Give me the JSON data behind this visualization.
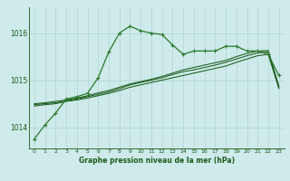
{
  "bg_color": "#ceeaea",
  "grid_color": "#add4d4",
  "line_color_dark": "#1a5c1a",
  "line_color_med": "#2a7a2a",
  "xlabel": "Graphe pression niveau de la mer (hPa)",
  "xlim": [
    -0.5,
    23.5
  ],
  "ylim": [
    1013.55,
    1016.55
  ],
  "yticks": [
    1014,
    1015,
    1016
  ],
  "xticks": [
    0,
    1,
    2,
    3,
    4,
    5,
    6,
    7,
    8,
    9,
    10,
    11,
    12,
    13,
    14,
    15,
    16,
    17,
    18,
    19,
    20,
    21,
    22,
    23
  ],
  "s1_x": [
    0,
    1,
    2,
    3,
    4,
    5,
    6,
    7,
    8,
    9,
    10,
    11,
    12,
    13,
    14,
    15,
    16,
    17,
    18,
    19,
    20,
    21,
    22,
    23
  ],
  "s1_y": [
    1013.75,
    1014.05,
    1014.3,
    1014.6,
    1014.65,
    1014.72,
    1015.05,
    1015.6,
    1016.0,
    1016.15,
    1016.05,
    1016.0,
    1015.97,
    1015.75,
    1015.55,
    1015.62,
    1015.62,
    1015.62,
    1015.72,
    1015.72,
    1015.62,
    1015.62,
    1015.55,
    1015.1
  ],
  "s2_x": [
    0,
    1,
    2,
    3,
    4,
    5,
    6,
    7,
    8,
    9,
    10,
    11,
    12,
    13,
    14,
    15,
    16,
    17,
    18,
    19,
    20,
    21,
    22,
    23
  ],
  "s2_y": [
    1014.45,
    1014.48,
    1014.5,
    1014.55,
    1014.58,
    1014.62,
    1014.67,
    1014.72,
    1014.78,
    1014.85,
    1014.9,
    1014.95,
    1015.0,
    1015.05,
    1015.1,
    1015.15,
    1015.2,
    1015.25,
    1015.3,
    1015.38,
    1015.45,
    1015.52,
    1015.55,
    1014.82
  ],
  "s3_x": [
    0,
    1,
    2,
    3,
    4,
    5,
    6,
    7,
    8,
    9,
    10,
    11,
    12,
    13,
    14,
    15,
    16,
    17,
    18,
    19,
    20,
    21,
    22,
    23
  ],
  "s3_y": [
    1014.48,
    1014.5,
    1014.52,
    1014.56,
    1014.6,
    1014.65,
    1014.7,
    1014.75,
    1014.82,
    1014.9,
    1014.95,
    1015.0,
    1015.05,
    1015.12,
    1015.18,
    1015.22,
    1015.27,
    1015.32,
    1015.38,
    1015.45,
    1015.52,
    1015.58,
    1015.6,
    1014.85
  ],
  "s4_x": [
    0,
    1,
    2,
    3,
    4,
    5,
    6,
    7,
    8,
    9,
    10,
    11,
    12,
    13,
    14,
    15,
    16,
    17,
    18,
    19,
    20,
    21,
    22,
    23
  ],
  "s4_y": [
    1014.5,
    1014.52,
    1014.55,
    1014.58,
    1014.62,
    1014.67,
    1014.73,
    1014.78,
    1014.85,
    1014.92,
    1014.97,
    1015.02,
    1015.08,
    1015.15,
    1015.22,
    1015.27,
    1015.32,
    1015.37,
    1015.42,
    1015.5,
    1015.57,
    1015.62,
    1015.63,
    1014.87
  ]
}
